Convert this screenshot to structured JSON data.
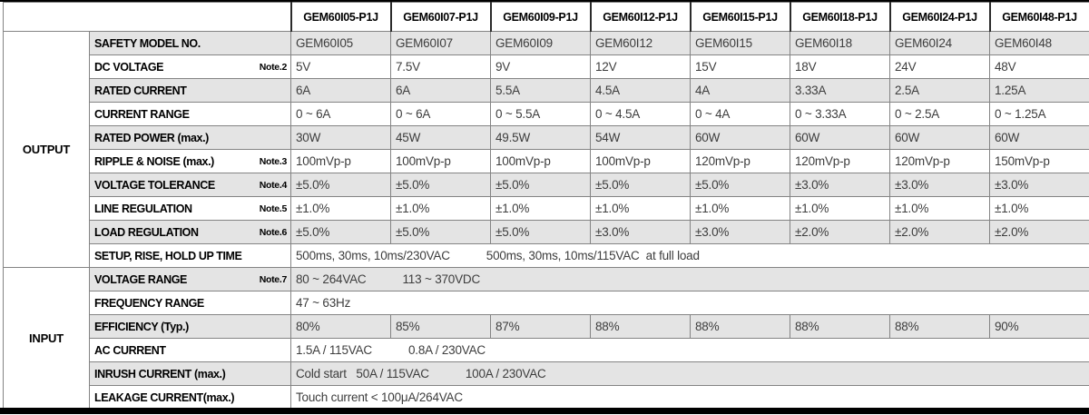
{
  "colors": {
    "top_bar": "#000000",
    "bottom_bar": "#000000",
    "grid_border": "#848484",
    "header_divider": "#2b2b2b",
    "row_bg": "#ffffff",
    "row_alt_bg": "#e4e4e4",
    "label_text": "#000000",
    "value_text": "#3d3d3d"
  },
  "table": {
    "corner_label": "",
    "model_columns": [
      "GEM60I05-P1J",
      "GEM60I07-P1J",
      "GEM60I09-P1J",
      "GEM60I12-P1J",
      "GEM60I15-P1J",
      "GEM60I18-P1J",
      "GEM60I24-P1J",
      "GEM60I48-P1J"
    ],
    "sections": [
      {
        "group": "OUTPUT",
        "rows": [
          {
            "label": "SAFETY MODEL NO.",
            "note": "",
            "values": [
              "GEM60I05",
              "GEM60I07",
              "GEM60I09",
              "GEM60I12",
              "GEM60I15",
              "GEM60I18",
              "GEM60I24",
              "GEM60I48"
            ]
          },
          {
            "label": "DC VOLTAGE",
            "note": "Note.2",
            "values": [
              "5V",
              "7.5V",
              "9V",
              "12V",
              "15V",
              "18V",
              "24V",
              "48V"
            ]
          },
          {
            "label": "RATED CURRENT",
            "note": "",
            "values": [
              "6A",
              "6A",
              "5.5A",
              "4.5A",
              "4A",
              "3.33A",
              "2.5A",
              "1.25A"
            ]
          },
          {
            "label": "CURRENT RANGE",
            "note": "",
            "values": [
              "0 ~ 6A",
              "0 ~ 6A",
              "0 ~ 5.5A",
              "0 ~ 4.5A",
              "0 ~ 4A",
              "0 ~ 3.33A",
              "0 ~ 2.5A",
              "0 ~ 1.25A"
            ]
          },
          {
            "label": "RATED POWER (max.)",
            "note": "",
            "values": [
              "30W",
              "45W",
              "49.5W",
              "54W",
              "60W",
              "60W",
              "60W",
              "60W"
            ]
          },
          {
            "label": "RIPPLE & NOISE (max.)",
            "note": "Note.3",
            "values": [
              "100mVp-p",
              "100mVp-p",
              "100mVp-p",
              "100mVp-p",
              "120mVp-p",
              "120mVp-p",
              "120mVp-p",
              "150mVp-p"
            ]
          },
          {
            "label": "VOLTAGE TOLERANCE",
            "note": "Note.4",
            "values": [
              "±5.0%",
              "±5.0%",
              "±5.0%",
              "±5.0%",
              "±5.0%",
              "±3.0%",
              "±3.0%",
              "±3.0%"
            ]
          },
          {
            "label": "LINE REGULATION",
            "note": "Note.5",
            "values": [
              "±1.0%",
              "±1.0%",
              "±1.0%",
              "±1.0%",
              "±1.0%",
              "±1.0%",
              "±1.0%",
              "±1.0%"
            ]
          },
          {
            "label": "LOAD REGULATION",
            "note": "Note.6",
            "values": [
              "±5.0%",
              "±5.0%",
              "±5.0%",
              "±3.0%",
              "±3.0%",
              "±2.0%",
              "±2.0%",
              "±2.0%"
            ]
          },
          {
            "label": "SETUP, RISE, HOLD UP TIME",
            "note": "",
            "span_parts": [
              "500ms, 30ms, 10ms/230VAC",
              "500ms, 30ms, 10ms/115VAC  at full load"
            ]
          }
        ]
      },
      {
        "group": "INPUT",
        "rows": [
          {
            "label": "VOLTAGE RANGE",
            "note": "Note.7",
            "span_parts": [
              "80 ~ 264VAC",
              "113 ~ 370VDC"
            ]
          },
          {
            "label": "FREQUENCY RANGE",
            "note": "",
            "span_parts": [
              "47 ~ 63Hz"
            ]
          },
          {
            "label": "EFFICIENCY (Typ.)",
            "note": "",
            "values": [
              "80%",
              "85%",
              "87%",
              "88%",
              "88%",
              "88%",
              "88%",
              "90%"
            ]
          },
          {
            "label": "AC CURRENT",
            "note": "",
            "span_parts": [
              "1.5A / 115VAC",
              "0.8A / 230VAC"
            ]
          },
          {
            "label": "INRUSH CURRENT (max.)",
            "note": "",
            "span_parts": [
              "Cold start   50A / 115VAC",
              "100A / 230VAC"
            ]
          },
          {
            "label": "LEAKAGE CURRENT(max.)",
            "note": "",
            "span_parts": [
              "Touch current < 100μA/264VAC"
            ]
          }
        ]
      }
    ]
  }
}
